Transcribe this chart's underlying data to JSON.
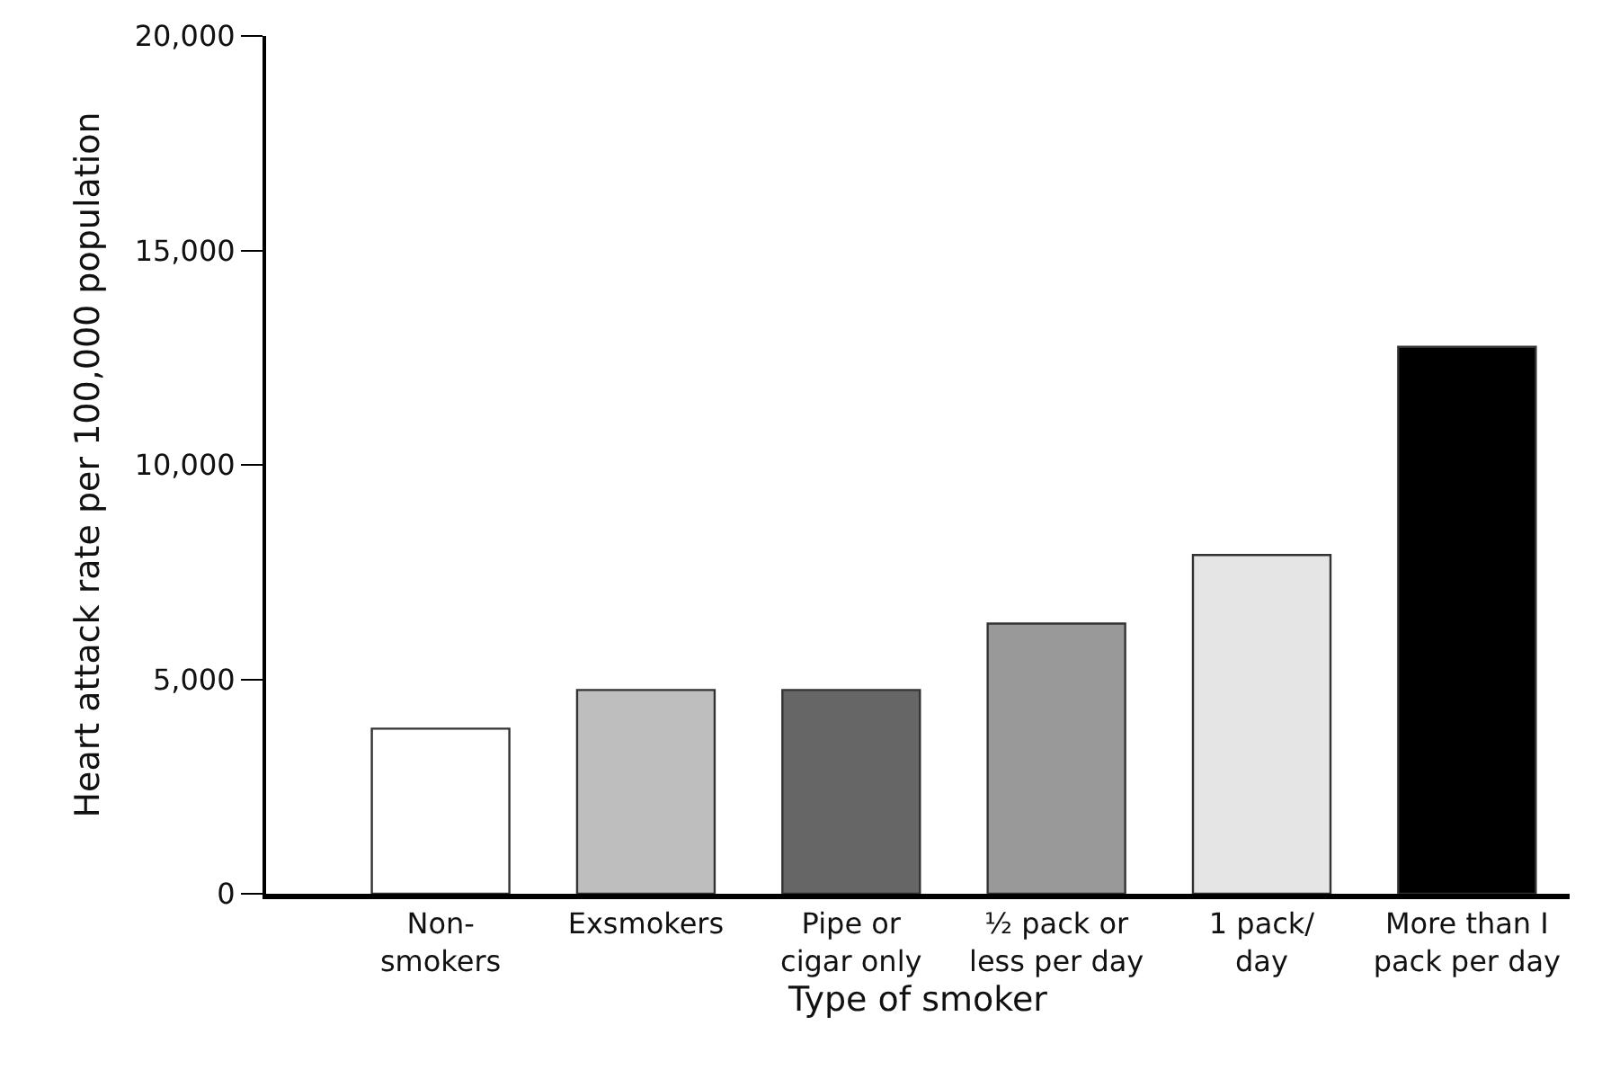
{
  "chart_data": {
    "type": "bar",
    "xlabel": "Type of smoker",
    "ylabel": "Heart attack rate per 100,000 population",
    "categories": [
      "Non-\nsmokers",
      "Exsmokers",
      "Pipe or\ncigar only",
      "½ pack or\nless per day",
      "1 pack/\nday",
      "More than I\npack per day"
    ],
    "values": [
      3850,
      4750,
      4750,
      6300,
      7900,
      12750
    ],
    "colors": [
      "#ffffff",
      "#bebebe",
      "#666666",
      "#999999",
      "#e5e5e5",
      "#000000"
    ],
    "ylim": [
      0,
      20000
    ],
    "yticks": [
      {
        "value": 0,
        "label": "0"
      },
      {
        "value": 5000,
        "label": "5,000"
      },
      {
        "value": 10000,
        "label": "10,000"
      },
      {
        "value": 15000,
        "label": "15,000"
      },
      {
        "value": 20000,
        "label": "20,000"
      }
    ]
  }
}
